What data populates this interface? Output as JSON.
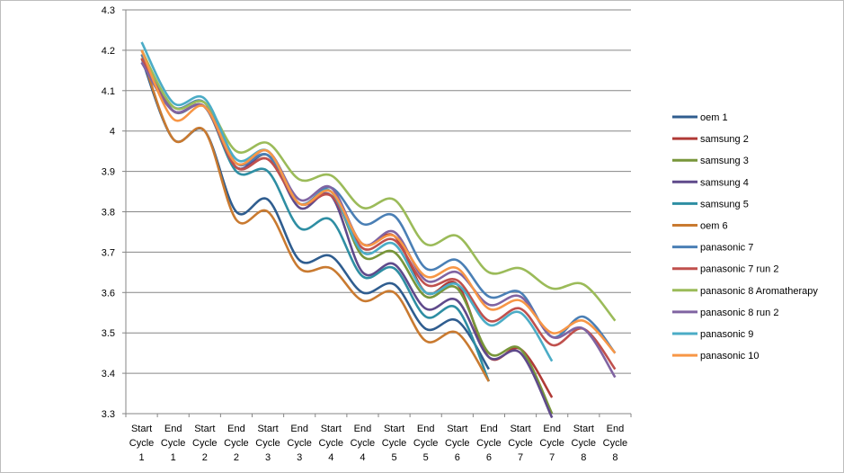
{
  "chart_data": {
    "type": "line",
    "ylim": [
      3.3,
      4.3
    ],
    "y_ticks": [
      "3.3",
      "3.4",
      "3.5",
      "3.6",
      "3.7",
      "3.8",
      "3.9",
      "4",
      "4.1",
      "4.2",
      "4.3"
    ],
    "categories": [
      [
        "Start",
        "Cycle",
        "1"
      ],
      [
        "End",
        "Cycle",
        "1"
      ],
      [
        "Start",
        "Cycle",
        "2"
      ],
      [
        "End",
        "Cycle",
        "2"
      ],
      [
        "Start",
        "Cycle",
        "3"
      ],
      [
        "End",
        "Cycle",
        "3"
      ],
      [
        "Start",
        "Cycle",
        "4"
      ],
      [
        "End",
        "Cycle",
        "4"
      ],
      [
        "Start",
        "Cycle",
        "5"
      ],
      [
        "End",
        "Cycle",
        "5"
      ],
      [
        "Start",
        "Cycle",
        "6"
      ],
      [
        "End",
        "Cycle",
        "6"
      ],
      [
        "Start",
        "Cycle",
        "7"
      ],
      [
        "End",
        "Cycle",
        "7"
      ],
      [
        "Start",
        "Cycle",
        "8"
      ],
      [
        "End",
        "Cycle",
        "8"
      ]
    ],
    "legend_position": "right",
    "gridlines": true,
    "series": [
      {
        "name": "oem 1",
        "color": "#2f5d8f",
        "values": [
          4.18,
          3.98,
          4.0,
          3.8,
          3.83,
          3.68,
          3.69,
          3.6,
          3.62,
          3.51,
          3.53,
          3.41,
          null,
          null,
          null,
          null
        ]
      },
      {
        "name": "samsung 2",
        "color": "#b03a36",
        "values": [
          4.18,
          4.05,
          4.06,
          3.91,
          3.93,
          3.82,
          3.84,
          3.72,
          3.74,
          3.6,
          3.62,
          3.44,
          3.46,
          3.34,
          null,
          null
        ]
      },
      {
        "name": "samsung 3",
        "color": "#78963a",
        "values": [
          4.18,
          4.05,
          4.06,
          3.91,
          3.94,
          3.82,
          3.85,
          3.69,
          3.7,
          3.59,
          3.61,
          3.45,
          3.46,
          3.3,
          null,
          null
        ]
      },
      {
        "name": "samsung 4",
        "color": "#5f4a8b",
        "values": [
          4.17,
          4.05,
          4.06,
          3.91,
          3.94,
          3.81,
          3.84,
          3.65,
          3.67,
          3.56,
          3.58,
          3.44,
          3.45,
          3.29,
          null,
          null
        ]
      },
      {
        "name": "samsung 5",
        "color": "#2e8ea3",
        "values": [
          4.2,
          4.05,
          4.06,
          3.9,
          3.9,
          3.76,
          3.78,
          3.64,
          3.66,
          3.54,
          3.56,
          3.38,
          null,
          null,
          null,
          null
        ]
      },
      {
        "name": "oem 6",
        "color": "#c97a30",
        "values": [
          4.19,
          3.98,
          4.0,
          3.78,
          3.8,
          3.66,
          3.66,
          3.58,
          3.6,
          3.48,
          3.5,
          3.38,
          null,
          null,
          null,
          null
        ]
      },
      {
        "name": "panasonic 7",
        "color": "#4a7fb5",
        "values": [
          4.19,
          4.06,
          4.07,
          3.92,
          3.94,
          3.82,
          3.86,
          3.77,
          3.79,
          3.66,
          3.68,
          3.59,
          3.6,
          3.49,
          3.54,
          3.45
        ]
      },
      {
        "name": "panasonic 7 run 2",
        "color": "#c0504d",
        "values": [
          4.18,
          4.05,
          4.06,
          3.91,
          3.93,
          3.82,
          3.84,
          3.71,
          3.73,
          3.62,
          3.63,
          3.53,
          3.56,
          3.47,
          3.51,
          3.41
        ]
      },
      {
        "name": "panasonic 8 Aromatherapy",
        "color": "#9bbb59",
        "values": [
          4.2,
          4.06,
          4.07,
          3.95,
          3.97,
          3.88,
          3.89,
          3.81,
          3.83,
          3.72,
          3.74,
          3.65,
          3.66,
          3.61,
          3.62,
          3.53
        ]
      },
      {
        "name": "panasonic 8 run 2",
        "color": "#8064a2",
        "values": [
          4.17,
          4.05,
          4.06,
          3.92,
          3.95,
          3.83,
          3.86,
          3.72,
          3.75,
          3.63,
          3.65,
          3.57,
          3.59,
          3.49,
          3.51,
          3.39
        ]
      },
      {
        "name": "panasonic 9",
        "color": "#4bacc6",
        "values": [
          4.22,
          4.07,
          4.08,
          3.93,
          3.95,
          3.82,
          3.85,
          3.7,
          3.72,
          3.6,
          3.62,
          3.52,
          3.55,
          3.43,
          null,
          null
        ]
      },
      {
        "name": "panasonic 10",
        "color": "#f79646",
        "values": [
          4.2,
          4.03,
          4.06,
          3.92,
          3.95,
          3.82,
          3.85,
          3.72,
          3.74,
          3.64,
          3.66,
          3.56,
          3.58,
          3.5,
          3.53,
          3.45
        ]
      }
    ]
  }
}
